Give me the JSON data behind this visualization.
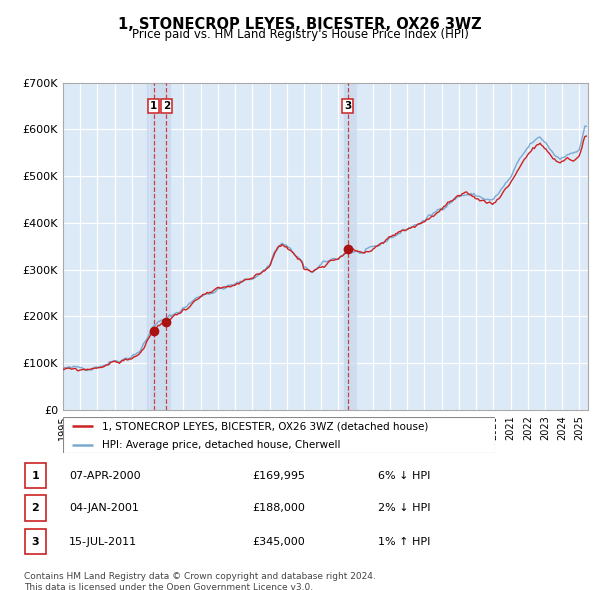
{
  "title": "1, STONECROP LEYES, BICESTER, OX26 3WZ",
  "subtitle": "Price paid vs. HM Land Registry's House Price Index (HPI)",
  "plot_bg_color": "#dce9f7",
  "grid_color": "#c8d8e8",
  "hpi_line_color": "#7aaad0",
  "price_line_color": "#cc2222",
  "sale_marker_color": "#aa1111",
  "ylim": [
    0,
    700000
  ],
  "yticks": [
    0,
    100000,
    200000,
    300000,
    400000,
    500000,
    600000,
    700000
  ],
  "ytick_labels": [
    "£0",
    "£100K",
    "£200K",
    "£300K",
    "£400K",
    "£500K",
    "£600K",
    "£700K"
  ],
  "sale_dates": [
    2000.27,
    2001.01,
    2011.54
  ],
  "sale_prices": [
    169995,
    188000,
    345000
  ],
  "sale_labels": [
    "1",
    "2",
    "3"
  ],
  "legend_items": [
    {
      "label": "1, STONECROP LEYES, BICESTER, OX26 3WZ (detached house)",
      "color": "#cc2222"
    },
    {
      "label": "HPI: Average price, detached house, Cherwell",
      "color": "#7aaad0"
    }
  ],
  "table_rows": [
    {
      "num": "1",
      "date": "07-APR-2000",
      "price": "£169,995",
      "hpi": "6% ↓ HPI"
    },
    {
      "num": "2",
      "date": "04-JAN-2001",
      "price": "£188,000",
      "hpi": "2% ↓ HPI"
    },
    {
      "num": "3",
      "date": "15-JUL-2011",
      "price": "£345,000",
      "hpi": "1% ↑ HPI"
    }
  ],
  "footnote": "Contains HM Land Registry data © Crown copyright and database right 2024.\nThis data is licensed under the Open Government Licence v3.0.",
  "xmin": 1995.0,
  "xmax": 2025.5
}
